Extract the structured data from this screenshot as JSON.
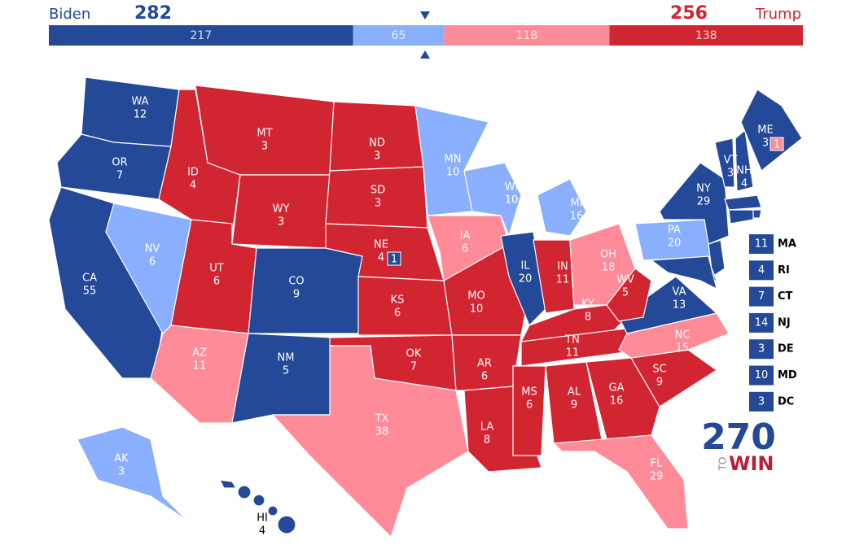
{
  "header": {
    "left_label": "Biden",
    "left_total": 282,
    "right_label": "Trump",
    "right_total": 256
  },
  "ratings": {
    "safe_d": "#244999",
    "lean_d": "#8aafff",
    "lean_r": "#ff8b98",
    "safe_r": "#d22532"
  },
  "bar": {
    "segments": [
      {
        "value": 217,
        "rating": "safe_d"
      },
      {
        "value": 65,
        "rating": "lean_d"
      },
      {
        "value": 118,
        "rating": "lean_r"
      },
      {
        "value": 138,
        "rating": "safe_r"
      }
    ]
  },
  "states": [
    {
      "abbr": "WA",
      "votes": 12,
      "rating": "safe_d"
    },
    {
      "abbr": "OR",
      "votes": 7,
      "rating": "safe_d"
    },
    {
      "abbr": "CA",
      "votes": 55,
      "rating": "safe_d"
    },
    {
      "abbr": "NV",
      "votes": 6,
      "rating": "lean_d"
    },
    {
      "abbr": "ID",
      "votes": 4,
      "rating": "safe_r"
    },
    {
      "abbr": "MT",
      "votes": 3,
      "rating": "safe_r"
    },
    {
      "abbr": "WY",
      "votes": 3,
      "rating": "safe_r"
    },
    {
      "abbr": "UT",
      "votes": 6,
      "rating": "safe_r"
    },
    {
      "abbr": "CO",
      "votes": 9,
      "rating": "safe_d"
    },
    {
      "abbr": "AZ",
      "votes": 11,
      "rating": "lean_r"
    },
    {
      "abbr": "NM",
      "votes": 5,
      "rating": "safe_d"
    },
    {
      "abbr": "ND",
      "votes": 3,
      "rating": "safe_r"
    },
    {
      "abbr": "SD",
      "votes": 3,
      "rating": "safe_r"
    },
    {
      "abbr": "NE",
      "votes": 4,
      "rating": "safe_r"
    },
    {
      "abbr": "KS",
      "votes": 6,
      "rating": "safe_r"
    },
    {
      "abbr": "OK",
      "votes": 7,
      "rating": "safe_r"
    },
    {
      "abbr": "TX",
      "votes": 38,
      "rating": "lean_r"
    },
    {
      "abbr": "MN",
      "votes": 10,
      "rating": "lean_d"
    },
    {
      "abbr": "IA",
      "votes": 6,
      "rating": "lean_r"
    },
    {
      "abbr": "MO",
      "votes": 10,
      "rating": "safe_r"
    },
    {
      "abbr": "AR",
      "votes": 6,
      "rating": "safe_r"
    },
    {
      "abbr": "LA",
      "votes": 8,
      "rating": "safe_r"
    },
    {
      "abbr": "WI",
      "votes": 10,
      "rating": "lean_d"
    },
    {
      "abbr": "IL",
      "votes": 20,
      "rating": "safe_d"
    },
    {
      "abbr": "MI",
      "votes": 16,
      "rating": "lean_d"
    },
    {
      "abbr": "IN",
      "votes": 11,
      "rating": "safe_r"
    },
    {
      "abbr": "OH",
      "votes": 18,
      "rating": "lean_r"
    },
    {
      "abbr": "KY",
      "votes": 8,
      "rating": "safe_r"
    },
    {
      "abbr": "TN",
      "votes": 11,
      "rating": "safe_r"
    },
    {
      "abbr": "MS",
      "votes": 6,
      "rating": "safe_r"
    },
    {
      "abbr": "AL",
      "votes": 9,
      "rating": "safe_r"
    },
    {
      "abbr": "GA",
      "votes": 16,
      "rating": "safe_r"
    },
    {
      "abbr": "SC",
      "votes": 9,
      "rating": "safe_r"
    },
    {
      "abbr": "FL",
      "votes": 29,
      "rating": "lean_r"
    },
    {
      "abbr": "NC",
      "votes": 15,
      "rating": "lean_r"
    },
    {
      "abbr": "VA",
      "votes": 13,
      "rating": "safe_d"
    },
    {
      "abbr": "WV",
      "votes": 5,
      "rating": "safe_r"
    },
    {
      "abbr": "PA",
      "votes": 20,
      "rating": "lean_d"
    },
    {
      "abbr": "NY",
      "votes": 29,
      "rating": "safe_d"
    },
    {
      "abbr": "VT",
      "votes": 3,
      "rating": "safe_d"
    },
    {
      "abbr": "NH",
      "votes": 4,
      "rating": "safe_d"
    },
    {
      "abbr": "ME",
      "votes": 3,
      "rating": "safe_d"
    },
    {
      "abbr": "AK",
      "votes": 3,
      "rating": "lean_d"
    },
    {
      "abbr": "HI",
      "votes": 4,
      "rating": "safe_d"
    }
  ],
  "districts": [
    {
      "votes": 1,
      "rating": "safe_d"
    },
    {
      "votes": 1,
      "rating": "lean_r"
    }
  ],
  "callouts": [
    {
      "abbr": "MA",
      "votes": 11,
      "rating": "safe_d"
    },
    {
      "abbr": "RI",
      "votes": 4,
      "rating": "safe_d"
    },
    {
      "abbr": "CT",
      "votes": 7,
      "rating": "safe_d"
    },
    {
      "abbr": "NJ",
      "votes": 14,
      "rating": "safe_d"
    },
    {
      "abbr": "DE",
      "votes": 3,
      "rating": "safe_d"
    },
    {
      "abbr": "MD",
      "votes": 10,
      "rating": "safe_d"
    },
    {
      "abbr": "DC",
      "votes": 3,
      "rating": "safe_d"
    }
  ],
  "logo": {
    "number": "270",
    "small": "TO",
    "word": "WIN"
  }
}
